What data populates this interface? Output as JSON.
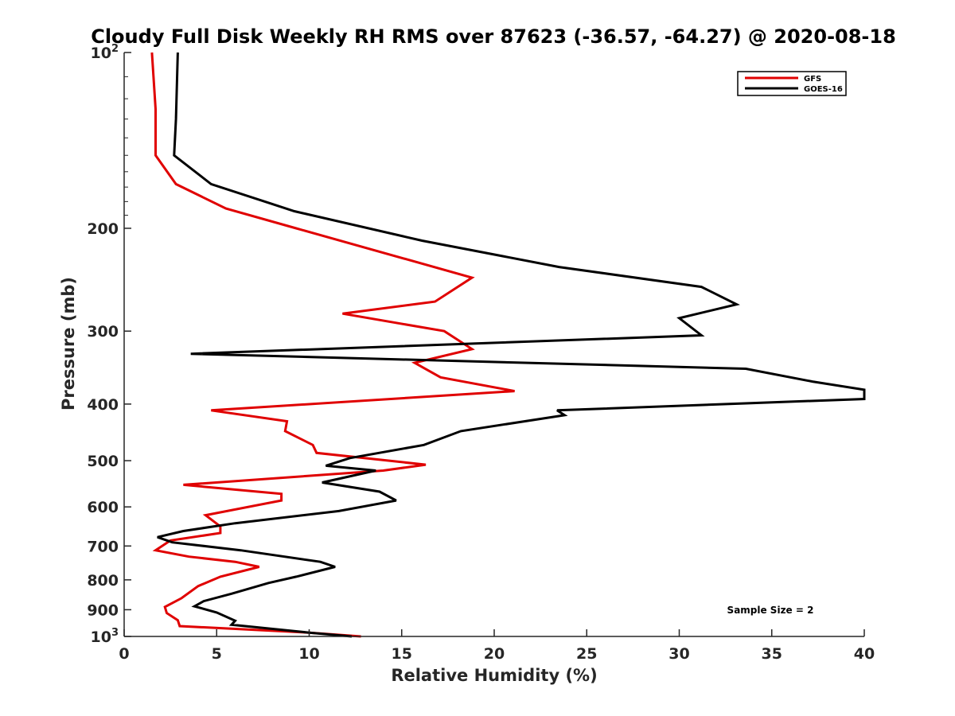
{
  "chart_data": {
    "type": "line",
    "title": "Cloudy Full Disk Weekly RH RMS over 87623 (-36.57, -64.27) @ 2020-08-18",
    "xlabel": "Relative Humidity (%)",
    "ylabel": "Pressure (mb)",
    "xlim": [
      0,
      40
    ],
    "ylim": [
      100,
      1000
    ],
    "y_scale": "log",
    "y_reversed": true,
    "grid": false,
    "legend_position": "top-right",
    "x_ticks": [
      "0",
      "5",
      "10",
      "15",
      "20",
      "25",
      "30",
      "35",
      "40"
    ],
    "y_ticks": [
      {
        "value": 100,
        "base": "10",
        "exp": "2"
      },
      {
        "value": 200,
        "label": "200"
      },
      {
        "value": 300,
        "label": "300"
      },
      {
        "value": 400,
        "label": "400"
      },
      {
        "value": 500,
        "label": "500"
      },
      {
        "value": 600,
        "label": "600"
      },
      {
        "value": 700,
        "label": "700"
      },
      {
        "value": 800,
        "label": "800"
      },
      {
        "value": 900,
        "label": "900"
      },
      {
        "value": 1000,
        "base": "10",
        "exp": "3"
      }
    ],
    "series": [
      {
        "name": "GFS",
        "color": "#e00000",
        "points": [
          [
            1.5,
            100
          ],
          [
            1.7,
            125
          ],
          [
            1.7,
            150
          ],
          [
            2.8,
            168
          ],
          [
            5.5,
            185
          ],
          [
            9.3,
            200
          ],
          [
            18.8,
            243
          ],
          [
            16.8,
            267
          ],
          [
            11.8,
            280
          ],
          [
            17.3,
            300
          ],
          [
            18.8,
            322
          ],
          [
            15.7,
            340
          ],
          [
            17.1,
            360
          ],
          [
            21.1,
            380
          ],
          [
            4.7,
            410
          ],
          [
            8.8,
            428
          ],
          [
            8.7,
            445
          ],
          [
            10.2,
            470
          ],
          [
            10.4,
            485
          ],
          [
            16.3,
            508
          ],
          [
            14.0,
            520
          ],
          [
            3.2,
            550
          ],
          [
            8.5,
            570
          ],
          [
            8.5,
            585
          ],
          [
            4.4,
            620
          ],
          [
            5.2,
            648
          ],
          [
            5.2,
            665
          ],
          [
            2.5,
            685
          ],
          [
            1.7,
            712
          ],
          [
            3.5,
            730
          ],
          [
            6.0,
            745
          ],
          [
            7.3,
            760
          ],
          [
            5.2,
            790
          ],
          [
            4.0,
            820
          ],
          [
            3.1,
            860
          ],
          [
            2.2,
            890
          ],
          [
            2.3,
            912
          ],
          [
            2.9,
            938
          ],
          [
            3.0,
            960
          ],
          [
            10.0,
            985
          ],
          [
            12.8,
            1000
          ]
        ]
      },
      {
        "name": "GOES-16",
        "color": "#000000",
        "points": [
          [
            2.9,
            100
          ],
          [
            2.8,
            130
          ],
          [
            2.7,
            150
          ],
          [
            4.7,
            168
          ],
          [
            9.2,
            187
          ],
          [
            16.1,
            210
          ],
          [
            23.5,
            233
          ],
          [
            31.2,
            252
          ],
          [
            33.1,
            270
          ],
          [
            30.0,
            285
          ],
          [
            31.2,
            305
          ],
          [
            3.6,
            328
          ],
          [
            33.6,
            348
          ],
          [
            37.2,
            366
          ],
          [
            40.0,
            378
          ],
          [
            40.0,
            392
          ],
          [
            23.4,
            410
          ],
          [
            23.8,
            418
          ],
          [
            18.2,
            445
          ],
          [
            16.2,
            470
          ],
          [
            12.2,
            495
          ],
          [
            10.9,
            510
          ],
          [
            13.6,
            520
          ],
          [
            10.7,
            545
          ],
          [
            13.8,
            565
          ],
          [
            14.7,
            585
          ],
          [
            11.6,
            610
          ],
          [
            6.0,
            640
          ],
          [
            3.2,
            660
          ],
          [
            1.8,
            676
          ],
          [
            2.6,
            690
          ],
          [
            6.3,
            712
          ],
          [
            10.6,
            745
          ],
          [
            11.4,
            760
          ],
          [
            9.3,
            790
          ],
          [
            7.8,
            810
          ],
          [
            5.8,
            845
          ],
          [
            4.3,
            870
          ],
          [
            3.8,
            888
          ],
          [
            5.0,
            910
          ],
          [
            6.0,
            940
          ],
          [
            5.8,
            955
          ],
          [
            10.0,
            985
          ],
          [
            12.3,
            1000
          ]
        ]
      }
    ],
    "annotation": "Sample Size = 2"
  }
}
